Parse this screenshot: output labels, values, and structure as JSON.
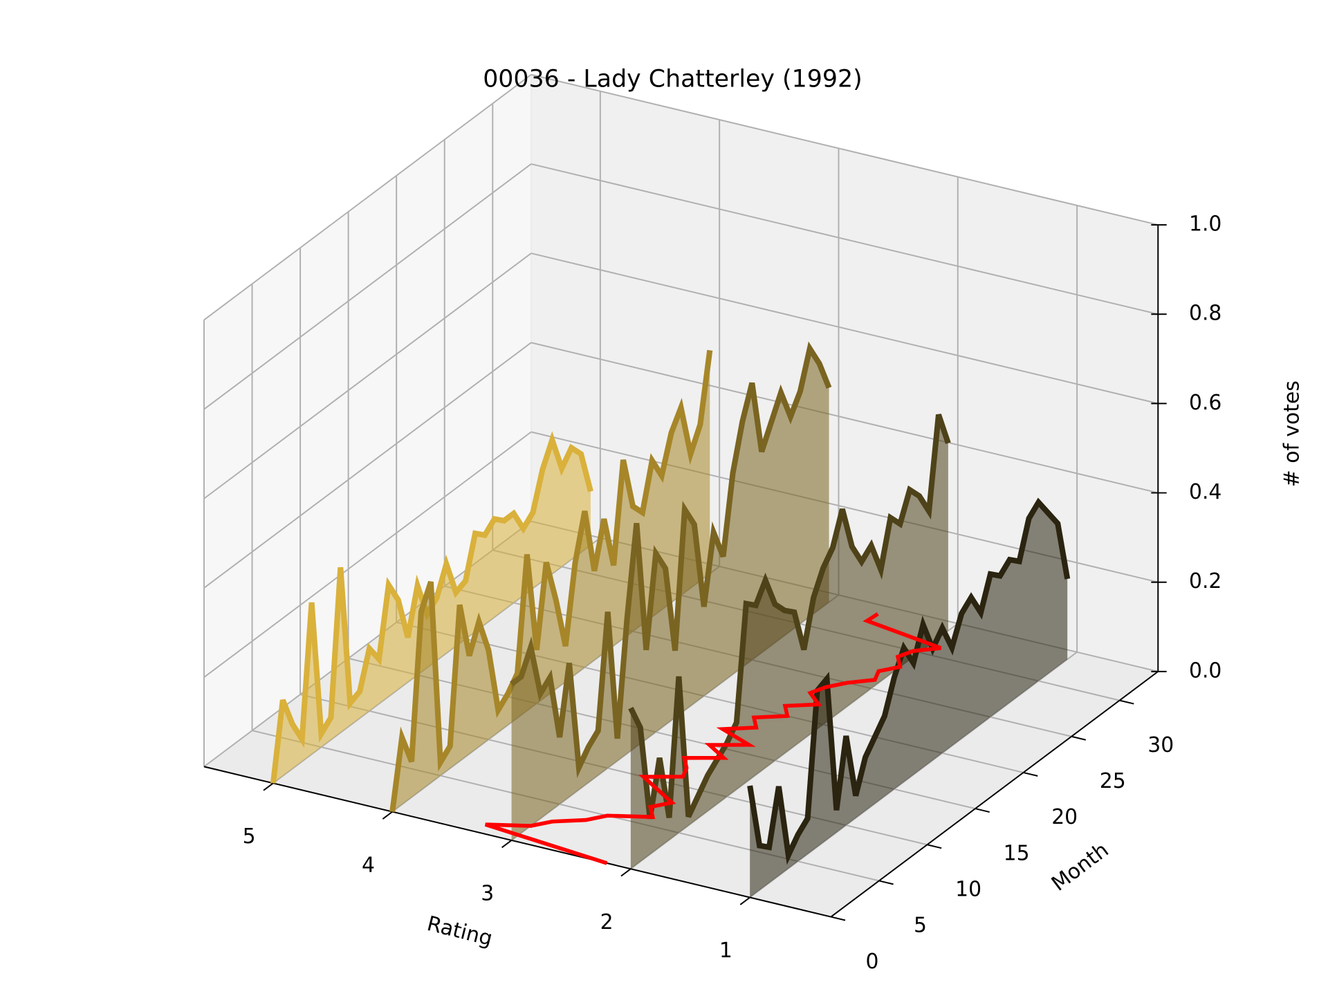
{
  "chart_data": {
    "type": "line3d",
    "title": "00036 - Lady Chatterley (1992)",
    "xlabel": "Rating",
    "ylabel": "Month",
    "zlabel": "# of votes",
    "xlim": [
      0.32,
      5.58
    ],
    "ylim": [
      0,
      34
    ],
    "zlim": [
      0,
      1
    ],
    "xticks": [
      1,
      2,
      3,
      4,
      5
    ],
    "yticks": [
      0,
      5,
      10,
      15,
      20,
      25,
      30
    ],
    "zticks": [
      {
        "value": 0,
        "label": "0.0"
      },
      {
        "value": 0.2,
        "label": "0.2"
      },
      {
        "value": 0.4,
        "label": "0.4"
      },
      {
        "value": 0.6,
        "label": "0.6"
      },
      {
        "value": 0.8,
        "label": "0.8"
      },
      {
        "value": 1,
        "label": "1.0"
      }
    ],
    "grid": true,
    "months": [
      0,
      1,
      2,
      3,
      4,
      5,
      6,
      7,
      8,
      9,
      10,
      11,
      12,
      13,
      14,
      15,
      16,
      17,
      18,
      19,
      20,
      21,
      22,
      23,
      24,
      25,
      26,
      27,
      28,
      29,
      30,
      31,
      32,
      33
    ],
    "series": [
      {
        "rating": 5,
        "color": "#d9b13b",
        "values": [
          0.0,
          0.17,
          0.1,
          0.05,
          0.34,
          0.03,
          0.05,
          0.37,
          0.05,
          0.06,
          0.14,
          0.1,
          0.25,
          0.2,
          0.1,
          0.2,
          0.12,
          0.14,
          0.2,
          0.12,
          0.13,
          0.22,
          0.2,
          0.22,
          0.2,
          0.2,
          0.15,
          0.17,
          0.25,
          0.3,
          0.22,
          0.25,
          0.22,
          0.12
        ]
      },
      {
        "rating": 4,
        "color": "#a68628",
        "values": [
          0.0,
          0.15,
          0.08,
          0.4,
          0.45,
          0.03,
          0.05,
          0.35,
          0.22,
          0.28,
          0.2,
          0.05,
          0.07,
          0.1,
          0.35,
          0.12,
          0.3,
          0.2,
          0.08,
          0.25,
          0.35,
          0.2,
          0.3,
          0.18,
          0.4,
          0.28,
          0.25,
          0.35,
          0.3,
          0.38,
          0.42,
          0.3,
          0.35,
          0.5
        ]
      },
      {
        "rating": 3,
        "color": "#7a6421",
        "values": [
          0.35,
          0.35,
          0.4,
          0.28,
          0.3,
          0.15,
          0.3,
          0.05,
          0.08,
          0.1,
          0.35,
          0.05,
          0.3,
          0.5,
          0.2,
          0.4,
          0.35,
          0.15,
          0.45,
          0.4,
          0.2,
          0.35,
          0.28,
          0.45,
          0.55,
          0.62,
          0.45,
          0.5,
          0.55,
          0.48,
          0.52,
          0.6,
          0.55,
          0.48
        ]
      },
      {
        "rating": 2,
        "color": "#4e4219",
        "values": [
          0.36,
          0.3,
          0.08,
          0.2,
          0.05,
          0.35,
          0.02,
          0.05,
          0.08,
          0.1,
          0.12,
          0.15,
          0.4,
          0.38,
          0.42,
          0.35,
          0.32,
          0.3,
          0.2,
          0.3,
          0.35,
          0.38,
          0.45,
          0.35,
          0.3,
          0.32,
          0.25,
          0.35,
          0.32,
          0.38,
          0.35,
          0.3,
          0.5,
          0.42
        ]
      },
      {
        "rating": 1,
        "color": "#2a2410",
        "values": [
          0.25,
          0.1,
          0.08,
          0.2,
          0.03,
          0.06,
          0.08,
          0.35,
          0.36,
          0.05,
          0.2,
          0.05,
          0.12,
          0.15,
          0.18,
          0.25,
          0.3,
          0.25,
          0.32,
          0.25,
          0.28,
          0.22,
          0.28,
          0.3,
          0.25,
          0.32,
          0.3,
          0.32,
          0.3,
          0.38,
          0.4,
          0.36,
          0.32,
          0.18
        ]
      }
    ],
    "mean_line": {
      "color": "#ff0000",
      "values": [
        2.2,
        3.3,
        3.0,
        2.9,
        2.7,
        2.6,
        2.3,
        2.4,
        2.3,
        2.5,
        2.7,
        2.45,
        2.5,
        2.6,
        2.35,
        2.55,
        2.3,
        2.6,
        2.4,
        2.5,
        2.3,
        2.4,
        2.2,
        2.35,
        2.3,
        2.2,
        2.05,
        2.1,
        2.0,
        2.1,
        2.05,
        1.9,
        2.6,
        2.59
      ]
    }
  }
}
